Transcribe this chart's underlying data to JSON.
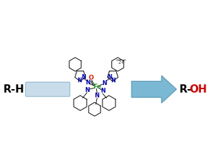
{
  "bg_color": "#ffffff",
  "rh_label": "R-H",
  "roh_r_label": "R-",
  "roh_oh_label": "OH",
  "roh_r_color": "#000000",
  "roh_oh_color": "#cc0000",
  "arrow_face_color": "#7ab8d4",
  "arrow_edge_color": "#5a98b4",
  "left_rect_face_color": "#c8dcea",
  "left_rect_edge_color": "#90b8cc",
  "fe_color": "#228822",
  "o_color": "#cc2200",
  "n_color": "#0000aa",
  "bond_color": "#111111",
  "ring_color": "#111111",
  "charge_color": "#444444",
  "figsize": [
    3.01,
    2.45
  ],
  "dpi": 100
}
